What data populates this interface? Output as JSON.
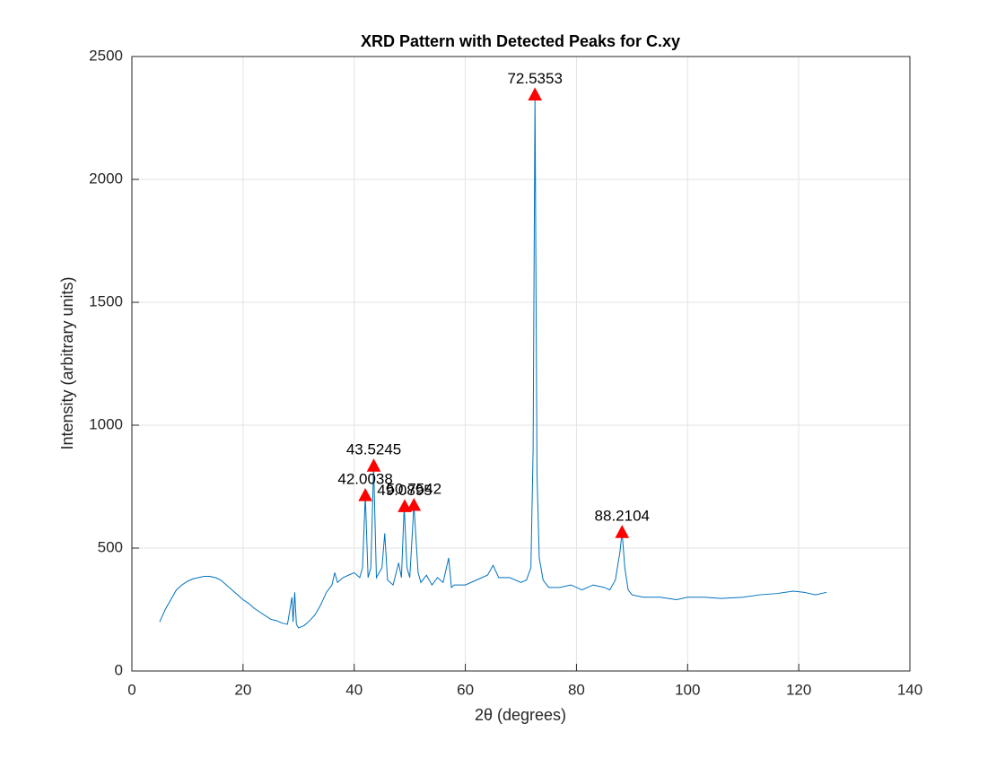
{
  "chart_data": {
    "type": "line",
    "title": "XRD Pattern with Detected Peaks for C.xy",
    "xlabel": "2θ (degrees)",
    "ylabel": "Intensity (arbitrary units)",
    "xlim": [
      0,
      140
    ],
    "ylim": [
      0,
      2500
    ],
    "xticks": [
      0,
      20,
      40,
      60,
      80,
      100,
      120,
      140
    ],
    "yticks": [
      0,
      500,
      1000,
      1500,
      2000,
      2500
    ],
    "grid": true,
    "series": [
      {
        "color": "#0072bd",
        "x": [
          5,
          6,
          7,
          8,
          9,
          10,
          11,
          12,
          13,
          14,
          15,
          16,
          17,
          18,
          19,
          20,
          21,
          22,
          23,
          24,
          25,
          26,
          27,
          28,
          28.8,
          29,
          29.3,
          29.6,
          30,
          31,
          32,
          33,
          34,
          35,
          36,
          36.5,
          37,
          38,
          39,
          40,
          41,
          41.5,
          42,
          42.5,
          43,
          43.5,
          44,
          45,
          45.5,
          46,
          47,
          48,
          48.5,
          49,
          49.5,
          50,
          50.75,
          51.5,
          52,
          53,
          54,
          55,
          56,
          57,
          57.5,
          58,
          60,
          62,
          64,
          65,
          66,
          68,
          70,
          71,
          71.8,
          72.2,
          72.5353,
          72.9,
          73.3,
          74,
          75,
          77,
          79,
          81,
          83,
          85,
          86,
          87,
          87.8,
          88.2104,
          88.7,
          89.3,
          90,
          92,
          95,
          98,
          100,
          103,
          106,
          110,
          113,
          116,
          119,
          121,
          123,
          125
        ],
        "values": [
          200,
          250,
          290,
          330,
          350,
          365,
          375,
          380,
          385,
          385,
          380,
          370,
          350,
          330,
          310,
          290,
          275,
          255,
          240,
          225,
          210,
          205,
          195,
          190,
          300,
          200,
          320,
          190,
          175,
          185,
          205,
          230,
          270,
          320,
          350,
          400,
          360,
          380,
          390,
          400,
          380,
          420,
          715,
          380,
          420,
          835,
          380,
          420,
          560,
          370,
          350,
          440,
          380,
          670,
          420,
          380,
          675,
          400,
          360,
          390,
          350,
          380,
          360,
          460,
          340,
          350,
          350,
          370,
          390,
          430,
          380,
          380,
          360,
          370,
          420,
          900,
          2345,
          800,
          460,
          370,
          340,
          340,
          350,
          330,
          350,
          340,
          330,
          370,
          480,
          565,
          420,
          330,
          310,
          300,
          300,
          290,
          300,
          300,
          295,
          300,
          310,
          315,
          325,
          320,
          310,
          320
        ]
      }
    ],
    "peaks": {
      "color": "#ff0000",
      "x": [
        42.0038,
        43.5245,
        49.0895,
        50.7542,
        72.5353,
        88.2104
      ],
      "values": [
        715,
        835,
        670,
        675,
        2345,
        565
      ]
    }
  }
}
